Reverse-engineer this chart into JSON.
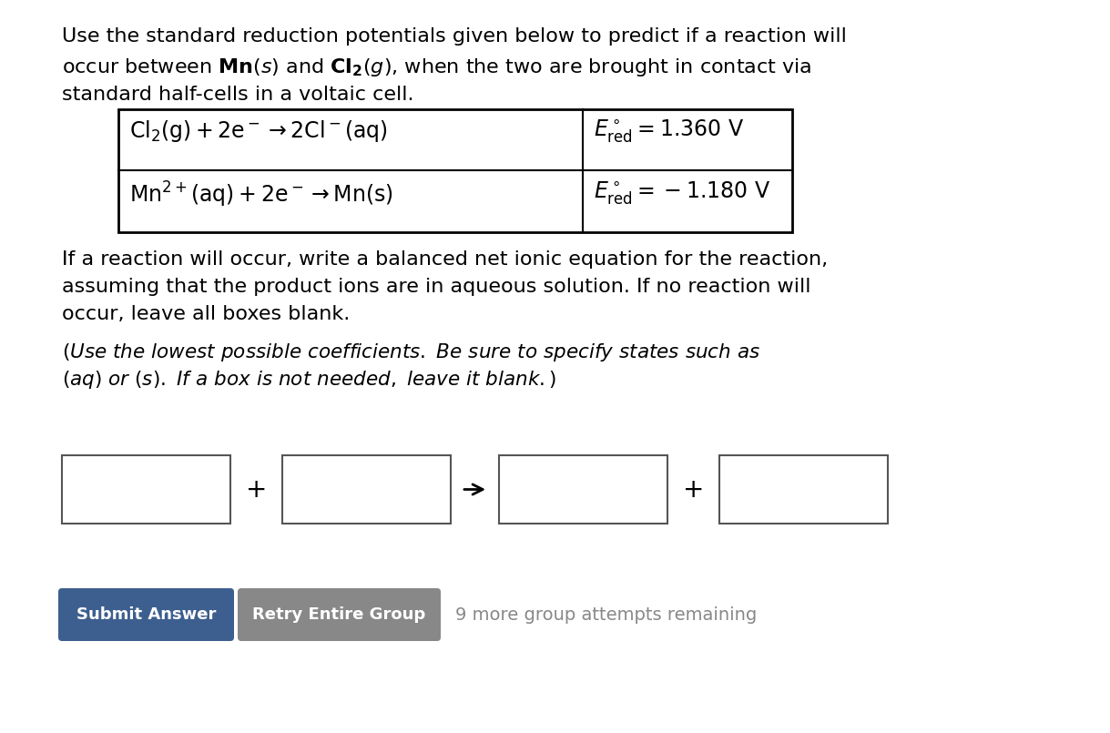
{
  "background_color": "#ffffff",
  "button1_color": "#3d5f8f",
  "button2_color": "#888888",
  "button1_text": "Submit Answer",
  "button2_text": "Retry Entire Group",
  "attempts_text": "9 more group attempts remaining",
  "font_size_body": 16,
  "font_size_table": 17,
  "font_size_italic": 15.5,
  "font_size_button": 13,
  "font_size_attempts": 14
}
